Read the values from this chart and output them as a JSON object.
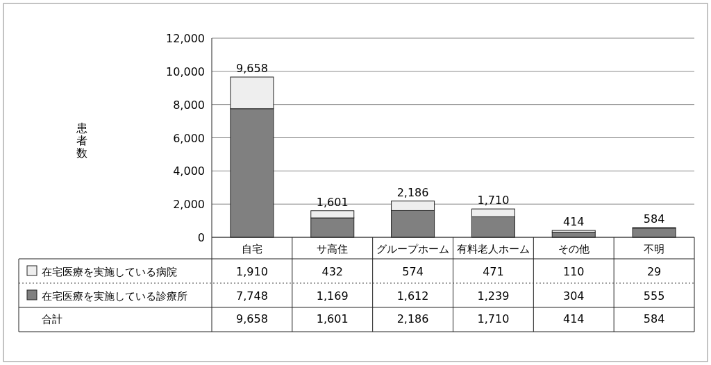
{
  "chart_data": {
    "type": "bar",
    "stacked": true,
    "categories": [
      "自宅",
      "サ高住",
      "グループホーム",
      "有料老人ホーム",
      "その他",
      "不明"
    ],
    "series": [
      {
        "name": "在宅医療を実施している診療所",
        "color": "#808080",
        "values": [
          7748,
          1169,
          1612,
          1239,
          304,
          555
        ],
        "value_labels": [
          "7,748",
          "1,169",
          "1,612",
          "1,239",
          "304",
          "555"
        ]
      },
      {
        "name": "在宅医療を実施している病院",
        "color": "#eeeeee",
        "values": [
          1910,
          432,
          574,
          471,
          110,
          29
        ],
        "value_labels": [
          "1,910",
          "432",
          "574",
          "471",
          "110",
          "29"
        ]
      }
    ],
    "totals": [
      "9,658",
      "1,601",
      "2,186",
      "1,710",
      "414",
      "584"
    ],
    "annotations": [
      "合計",
      "患者数"
    ],
    "ylim": [
      0,
      12000
    ],
    "yticks": [
      {
        "value": 0,
        "label": "0"
      },
      {
        "value": 2000,
        "label": "2,000"
      },
      {
        "value": 4000,
        "label": "4,000"
      },
      {
        "value": 6000,
        "label": "6,000"
      },
      {
        "value": 8000,
        "label": "8,000"
      },
      {
        "value": 10000,
        "label": "10,000"
      },
      {
        "value": 12000,
        "label": "12,000"
      }
    ],
    "grid": "y",
    "legend": "bottom"
  }
}
